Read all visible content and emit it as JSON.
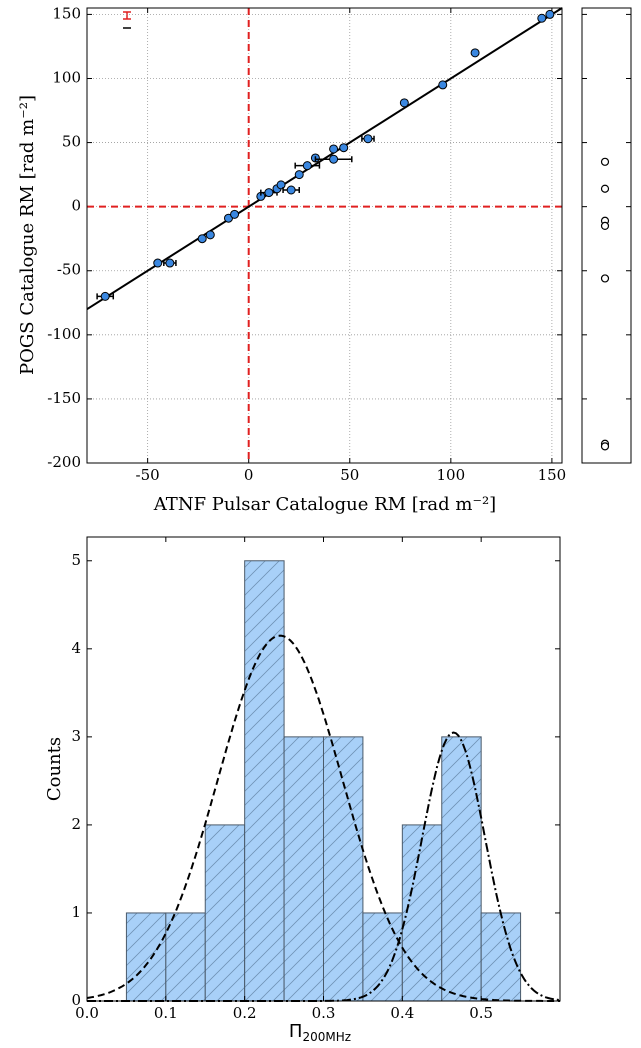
{
  "chart_data": [
    {
      "type": "scatter",
      "xlabel": "ATNF Pulsar Catalogue RM [rad m⁻²]",
      "ylabel": "POGS Catalogue RM [rad m⁻²]",
      "xlim": [
        -80,
        155
      ],
      "ylim": [
        -200,
        155
      ],
      "xticks": [
        -50,
        0,
        50,
        100,
        150
      ],
      "yticks": [
        -200,
        -150,
        -100,
        -50,
        0,
        50,
        100,
        150
      ],
      "grid": true,
      "color": "#3a87e0",
      "x": [
        -71,
        -45,
        -39,
        -23,
        -19,
        -10,
        -7,
        6,
        10,
        14,
        16,
        21,
        25,
        29,
        33,
        42,
        42,
        47,
        59,
        77,
        96,
        112,
        145,
        149
      ],
      "y": [
        -70,
        -44,
        -44,
        -25,
        -22,
        -9,
        -6,
        8,
        11,
        14,
        17,
        13,
        25,
        32,
        38,
        45,
        37,
        46,
        53,
        81,
        95,
        120,
        147,
        150
      ],
      "xerr": [
        4,
        null,
        3,
        null,
        null,
        null,
        null,
        null,
        4,
        null,
        null,
        4,
        null,
        6,
        null,
        null,
        9,
        null,
        3,
        null,
        null,
        null,
        null,
        null
      ],
      "fit_line": {
        "x": [
          -80,
          155
        ],
        "y": [
          -80,
          155
        ],
        "color": "#000000"
      },
      "reference_lines": {
        "x": 0,
        "y": 0,
        "color": "#e02020"
      },
      "side_panel": {
        "values": [
          35,
          14,
          -11,
          -15,
          -56,
          -185,
          -187
        ]
      }
    },
    {
      "type": "histogram",
      "xlabel": "Π",
      "xlabel_sub": "200MHz",
      "ylabel": "Counts",
      "bins": [
        0.05,
        0.1,
        0.15,
        0.2,
        0.25,
        0.3,
        0.35,
        0.4,
        0.45,
        0.5,
        0.55
      ],
      "counts": [
        1,
        1,
        2,
        5,
        3,
        3,
        1,
        2,
        3,
        1
      ],
      "color": "#a8d0f8",
      "xlim": [
        0,
        0.6
      ],
      "ylim": [
        0,
        5.27
      ],
      "xticks": [
        {
          "value": 0,
          "label": "0.0"
        },
        0.1,
        0.2,
        0.3,
        0.4,
        0.5
      ],
      "yticks": [
        0,
        1,
        2,
        3,
        4,
        5
      ],
      "curves": [
        {
          "amplitude": 4.15,
          "mean": 0.245,
          "sigma": 0.079,
          "style": "dashed"
        },
        {
          "amplitude": 3.05,
          "mean": 0.465,
          "sigma": 0.04,
          "style": "dashdot"
        }
      ]
    }
  ]
}
